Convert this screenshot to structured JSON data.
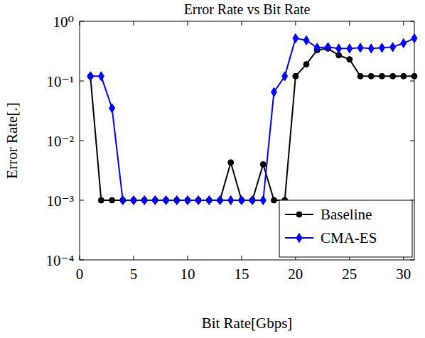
{
  "chart_data": {
    "type": "line",
    "title": "Error Rate vs Bit Rate",
    "x_label": "Bit Rate[Gbps]",
    "y_label": "Error Rate[.]",
    "log": "y",
    "grid": false,
    "legend": "bottom-right",
    "xlim": [
      0,
      31
    ],
    "xticks": [
      0,
      5,
      10,
      15,
      20,
      25,
      30
    ],
    "ylim": [
      0.0001,
      1
    ],
    "yticks": [
      {
        "value": 0.0001,
        "label": "10⁻⁴"
      },
      {
        "value": 0.001,
        "label": "10⁻³"
      },
      {
        "value": 0.01,
        "label": "10⁻²"
      },
      {
        "value": 0.1,
        "label": "10⁻¹"
      },
      {
        "value": 1,
        "label": "10⁰"
      }
    ],
    "x": [
      1,
      2,
      3,
      4,
      5,
      6,
      7,
      8,
      9,
      10,
      11,
      12,
      13,
      14,
      15,
      16,
      17,
      18,
      19,
      20,
      21,
      22,
      23,
      24,
      25,
      26,
      27,
      28,
      29,
      30,
      31
    ],
    "series": [
      {
        "name": "Baseline",
        "color": "#000000",
        "marker": "circle",
        "values": [
          0.12,
          0.001,
          0.001,
          0.001,
          0.001,
          0.001,
          0.001,
          0.001,
          0.001,
          0.001,
          0.001,
          0.001,
          0.001,
          0.0043,
          0.001,
          0.001,
          0.004,
          0.001,
          0.001,
          0.12,
          0.19,
          0.33,
          0.35,
          0.27,
          0.23,
          0.12,
          0.12,
          0.12,
          0.12,
          0.12,
          0.12
        ]
      },
      {
        "name": "CMA-ES",
        "color": "#0000ff",
        "marker": "diamond",
        "values": [
          0.12,
          0.12,
          0.035,
          0.001,
          0.001,
          0.001,
          0.001,
          0.001,
          0.001,
          0.001,
          0.001,
          0.001,
          0.001,
          0.001,
          0.001,
          0.001,
          0.001,
          0.065,
          0.12,
          0.52,
          0.48,
          0.36,
          0.37,
          0.35,
          0.35,
          0.36,
          0.35,
          0.36,
          0.37,
          0.43,
          0.52
        ]
      }
    ]
  }
}
